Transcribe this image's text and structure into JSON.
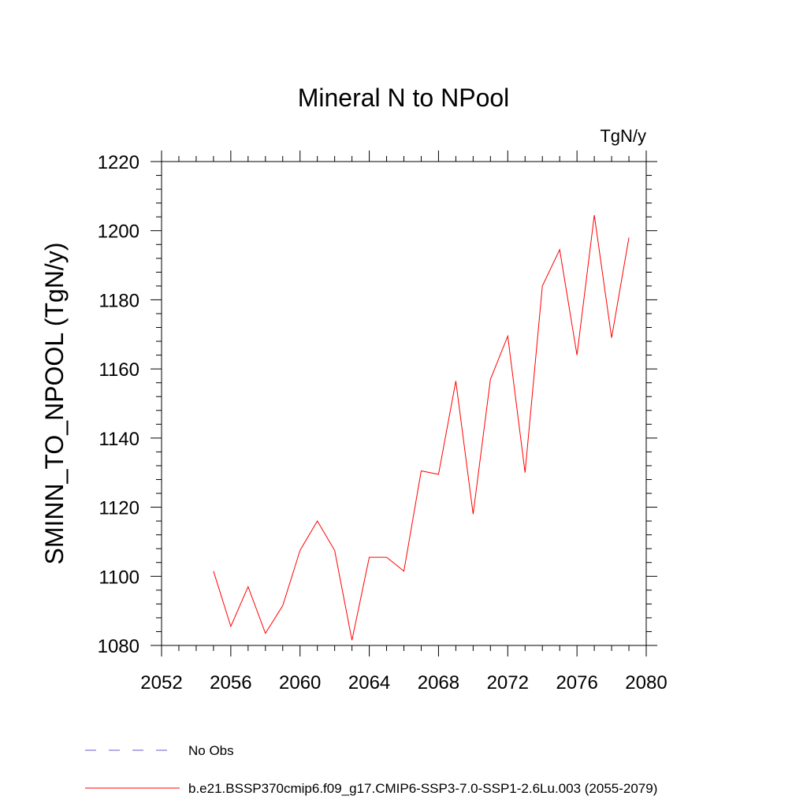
{
  "chart_data": {
    "type": "line",
    "title": "Mineral N to NPool",
    "units_label": "TgN/y",
    "xlabel": "",
    "ylabel": "SMINN_TO_NPOOL  (TgN/y)",
    "xlim": [
      2052,
      2080
    ],
    "ylim": [
      1080,
      1220
    ],
    "x_ticks": [
      2052,
      2056,
      2060,
      2064,
      2068,
      2072,
      2076,
      2080
    ],
    "y_ticks": [
      1080,
      1100,
      1120,
      1140,
      1160,
      1180,
      1200,
      1220
    ],
    "x_minor_step": 1,
    "y_minor_step": 4,
    "grid": false,
    "legend_position": "bottom-left",
    "series": [
      {
        "name": "b.e21.BSSP370cmip6.f09_g17.CMIP6-SSP3-7.0-SSP1-2.6Lu.003 (2055-2079)",
        "color": "#ff0000",
        "style": "solid",
        "x": [
          2055,
          2056,
          2057,
          2058,
          2059,
          2060,
          2061,
          2062,
          2063,
          2064,
          2065,
          2066,
          2067,
          2068,
          2069,
          2070,
          2071,
          2072,
          2073,
          2074,
          2075,
          2076,
          2077,
          2078,
          2079
        ],
        "values": [
          1101.5,
          1085.5,
          1097,
          1083.5,
          1091.5,
          1107.5,
          1116,
          1107.5,
          1081.5,
          1105.5,
          1105.5,
          1101.5,
          1130.5,
          1129.5,
          1156.5,
          1118,
          1157,
          1169.5,
          1130,
          1184,
          1194.5,
          1164,
          1204.5,
          1169,
          1198
        ]
      }
    ],
    "legend": [
      {
        "label": "No Obs",
        "color": "#6a5acd",
        "style": "dashed"
      },
      {
        "label": "b.e21.BSSP370cmip6.f09_g17.CMIP6-SSP3-7.0-SSP1-2.6Lu.003 (2055-2079)",
        "color": "#ff0000",
        "style": "solid"
      }
    ]
  }
}
